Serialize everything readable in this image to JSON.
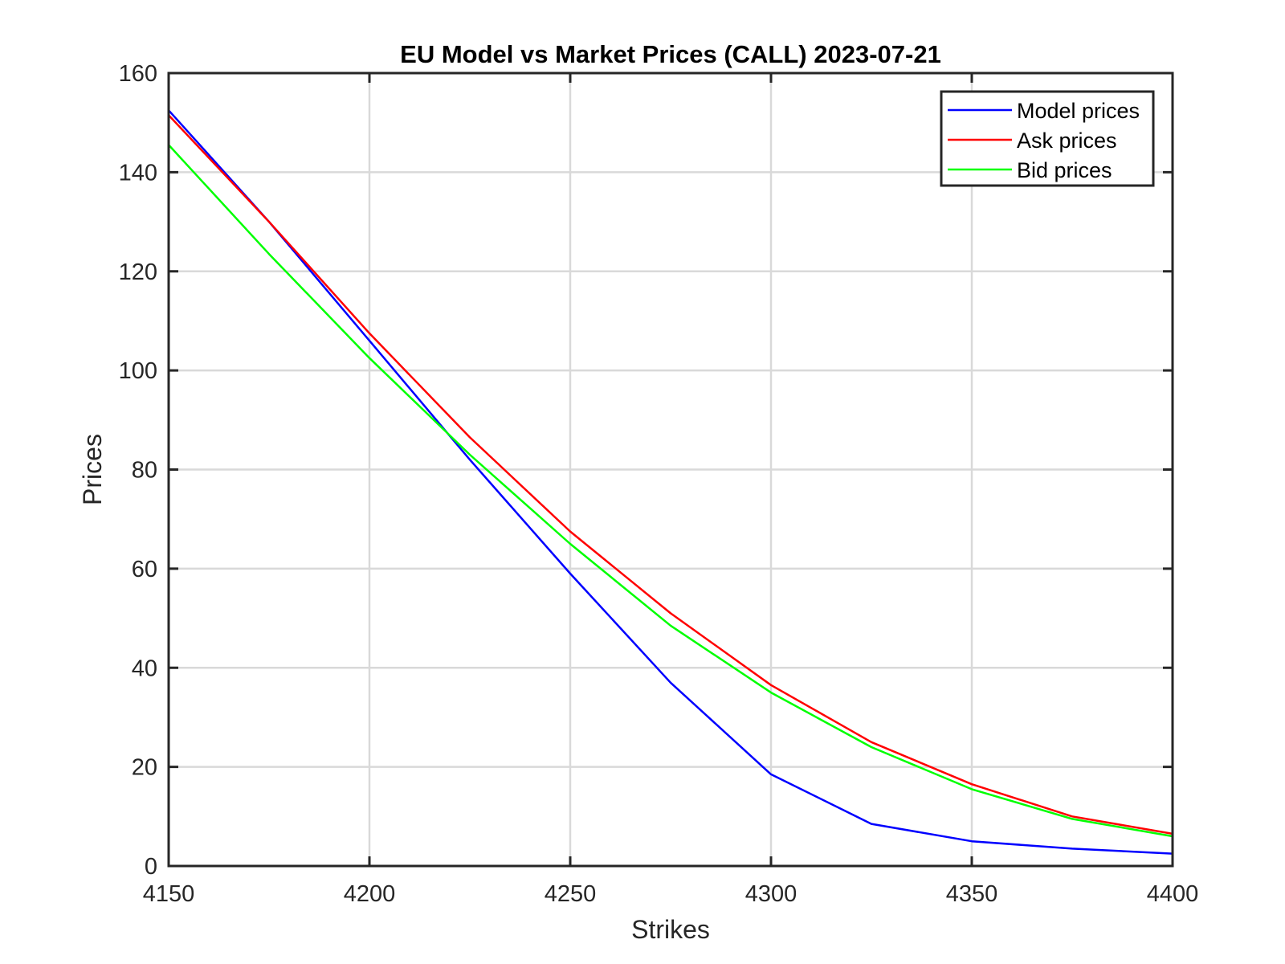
{
  "chart_data": {
    "type": "line",
    "title": "EU Model vs Market Prices (CALL) 2023-07-21",
    "xlabel": "Strikes",
    "ylabel": "Prices",
    "xlim": [
      4150,
      4400
    ],
    "ylim": [
      0,
      160
    ],
    "xticks": [
      4150,
      4200,
      4250,
      4300,
      4350,
      4400
    ],
    "yticks": [
      0,
      20,
      40,
      60,
      80,
      100,
      120,
      140,
      160
    ],
    "grid": true,
    "legend_position": "top-right",
    "x": [
      4150,
      4175,
      4200,
      4225,
      4250,
      4275,
      4300,
      4325,
      4350,
      4375,
      4400
    ],
    "series": [
      {
        "name": "Model prices",
        "color": "#0000ff",
        "values": [
          152.5,
          130.0,
          106.0,
          82.0,
          59.0,
          37.0,
          18.5,
          8.5,
          5.0,
          3.5,
          2.5
        ]
      },
      {
        "name": "Ask prices",
        "color": "#ff0000",
        "values": [
          151.5,
          130.0,
          107.5,
          86.5,
          67.5,
          51.0,
          36.5,
          25.0,
          16.5,
          10.0,
          6.5
        ]
      },
      {
        "name": "Bid prices",
        "color": "#00ff00",
        "values": [
          145.5,
          123.5,
          102.5,
          83.0,
          65.0,
          48.5,
          35.0,
          24.0,
          15.5,
          9.5,
          6.0
        ]
      }
    ]
  }
}
